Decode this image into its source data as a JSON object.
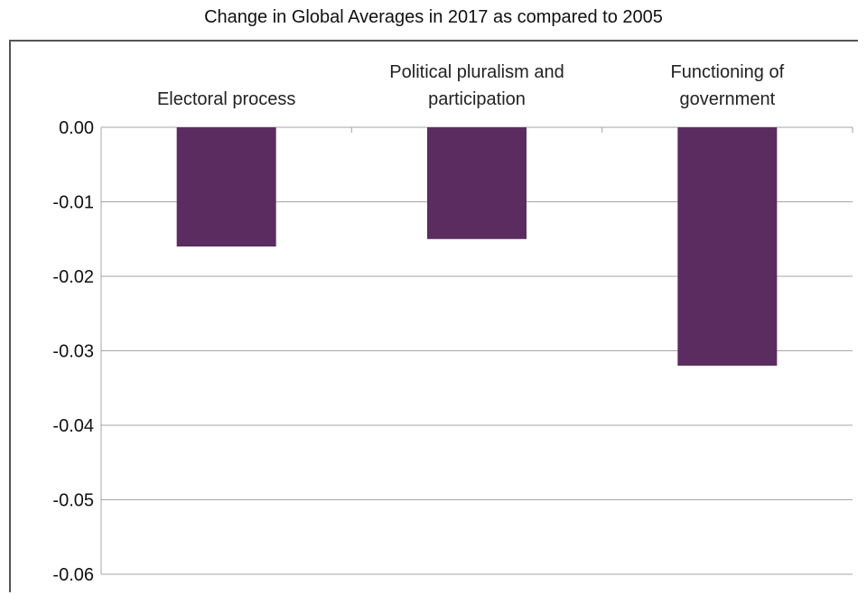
{
  "chart_data": {
    "type": "bar",
    "title": "Change in Global Averages in 2017 as compared to 2005",
    "categories": [
      [
        "Electoral process"
      ],
      [
        "Political pluralism and",
        "participation"
      ],
      [
        "Functioning of",
        "government"
      ]
    ],
    "values": [
      -0.016,
      -0.015,
      -0.032
    ],
    "ylim": [
      -0.06,
      0.0
    ],
    "yticks": [
      "0.00",
      "-0.01",
      "-0.02",
      "-0.03",
      "-0.04",
      "-0.05",
      "-0.06"
    ],
    "ytick_values": [
      0.0,
      -0.01,
      -0.02,
      -0.03,
      -0.04,
      -0.05,
      -0.06
    ],
    "xlabel": "",
    "ylabel": "",
    "grid": true,
    "bar_color": "#5b2c5f",
    "grid_color": "#a6a6a6",
    "category_label_position": "top"
  }
}
